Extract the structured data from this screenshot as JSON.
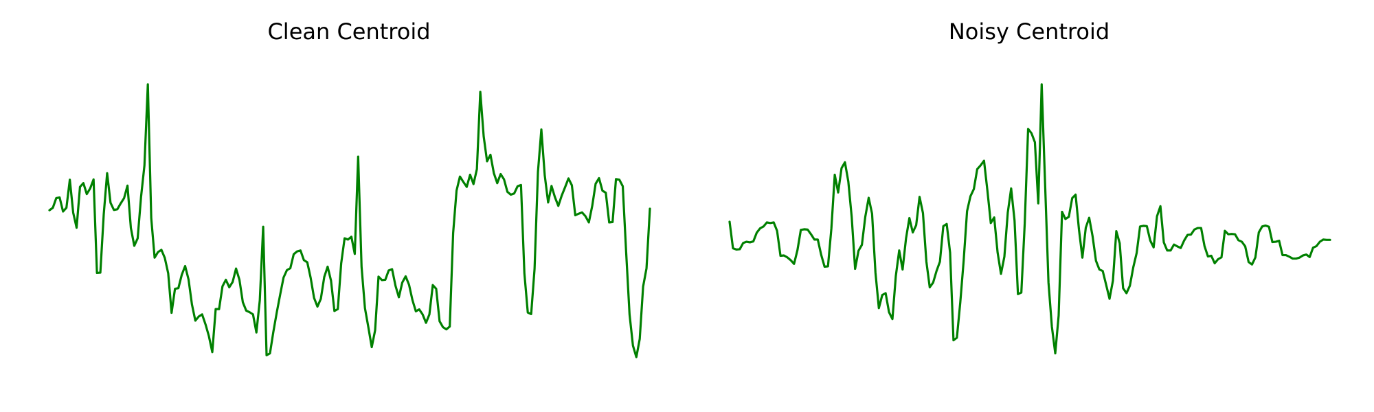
{
  "chart_data": [
    {
      "type": "line",
      "title": "Clean Centroid",
      "xlabel": "",
      "ylabel": "",
      "grid": false,
      "axes_visible": false,
      "color": "#008000",
      "ylim": [
        0,
        100
      ],
      "values": [
        53.7,
        54.5,
        57.6,
        57.8,
        53.3,
        54.5,
        63.5,
        52.9,
        48.1,
        61.2,
        62.4,
        58.9,
        60.7,
        63.6,
        33.6,
        33.7,
        52.4,
        65.6,
        56.1,
        53.8,
        54.0,
        55.9,
        57.6,
        61.6,
        48.0,
        42.3,
        44.7,
        58.0,
        68.1,
        94.1,
        51.2,
        38.5,
        40.3,
        41.0,
        38.4,
        33.5,
        20.8,
        28.5,
        28.7,
        33.0,
        35.8,
        31.5,
        23.5,
        18.3,
        19.6,
        20.3,
        17.1,
        13.3,
        8.2,
        22.0,
        22.0,
        29.3,
        31.4,
        29.0,
        30.7,
        35.0,
        31.4,
        24.2,
        21.5,
        21.0,
        20.3,
        14.5,
        24.8,
        48.4,
        7.2,
        7.8,
        14.7,
        20.9,
        26.6,
        32.1,
        34.5,
        35.1,
        39.6,
        40.5,
        40.8,
        37.7,
        37.0,
        32.0,
        25.6,
        22.8,
        25.3,
        32.3,
        35.6,
        31.1,
        21.4,
        22.0,
        36.7,
        44.7,
        44.3,
        45.2,
        39.7,
        70.9,
        35.6,
        22.3,
        16.2,
        9.8,
        15.2,
        32.4,
        31.3,
        31.4,
        34.4,
        34.8,
        29.5,
        25.8,
        30.5,
        32.5,
        29.8,
        24.9,
        21.3,
        21.9,
        20.3,
        17.6,
        20.3,
        29.7,
        28.5,
        18.1,
        16.2,
        15.5,
        16.4,
        46.4,
        60.0,
        64.5,
        62.8,
        61.2,
        65.1,
        62.1,
        66.9,
        91.7,
        77.4,
        69.4,
        71.5,
        65.6,
        62.4,
        65.3,
        63.6,
        59.6,
        58.7,
        59.1,
        61.4,
        61.8,
        33.5,
        20.9,
        20.4,
        34.9,
        66.0,
        79.6,
        64.9,
        56.2,
        61.5,
        57.9,
        55.1,
        58.4,
        61.1,
        63.9,
        61.7,
        52.1,
        52.6,
        53.0,
        51.8,
        49.8,
        55.1,
        62.2,
        64.0,
        60.0,
        59.3,
        49.8,
        49.9,
        63.7,
        63.5,
        61.4,
        40.2,
        20.3,
        10.3,
        6.6,
        12.4,
        29.2,
        35.1,
        54.2
      ]
    },
    {
      "type": "line",
      "title": "Noisy Centroid",
      "xlabel": "",
      "ylabel": "",
      "grid": false,
      "axes_visible": false,
      "color": "#008000",
      "ylim": [
        0,
        100
      ],
      "values": [
        50.0,
        41.5,
        41.1,
        41.2,
        43.2,
        43.6,
        43.4,
        43.7,
        46.5,
        47.9,
        48.5,
        49.8,
        49.6,
        49.8,
        47.1,
        39.1,
        39.2,
        38.6,
        37.7,
        36.5,
        40.9,
        47.4,
        47.6,
        47.5,
        46.0,
        44.3,
        44.3,
        39.4,
        35.6,
        35.7,
        47.8,
        65.1,
        59.4,
        67.2,
        69.1,
        62.9,
        51.5,
        34.9,
        40.7,
        42.6,
        51.6,
        57.7,
        52.6,
        33.7,
        22.3,
        26.5,
        27.1,
        21.0,
        18.8,
        32.6,
        40.8,
        34.7,
        44.6,
        51.2,
        46.6,
        48.9,
        58.0,
        52.8,
        37.3,
        29.0,
        30.5,
        34.2,
        37.2,
        48.6,
        49.3,
        40.1,
        12.0,
        12.8,
        24.1,
        37.5,
        53.4,
        58.2,
        60.5,
        66.9,
        68.1,
        69.6,
        60.0,
        49.6,
        51.4,
        40.2,
        33.3,
        38.8,
        52.9,
        60.7,
        50.4,
        26.8,
        27.3,
        49.4,
        79.8,
        78.4,
        75.5,
        55.9,
        94.1,
        62.3,
        30.6,
        16.4,
        7.8,
        19.9,
        53.2,
        50.9,
        51.6,
        57.6,
        58.7,
        47.4,
        38.5,
        48.1,
        51.3,
        45.4,
        37.5,
        34.7,
        34.2,
        29.8,
        25.3,
        31.1,
        47.0,
        43.1,
        28.7,
        27.1,
        29.5,
        35.4,
        40.0,
        48.5,
        48.7,
        48.6,
        44.0,
        41.8,
        51.8,
        55.0,
        43.4,
        40.8,
        40.8,
        42.7,
        42.1,
        41.6,
        44.0,
        45.8,
        45.9,
        47.5,
        48.0,
        48.0,
        42.2,
        38.9,
        39.1,
        36.7,
        38.0,
        38.6,
        47.1,
        46.0,
        46.1,
        46.0,
        44.1,
        43.6,
        42.1,
        37.1,
        36.3,
        38.6,
        46.6,
        48.5,
        48.8,
        48.4,
        43.5,
        43.6,
        43.9,
        39.3,
        39.3,
        38.8,
        38.2,
        38.2,
        38.5,
        39.2,
        39.5,
        38.7,
        41.7,
        42.2,
        43.6,
        44.3,
        44.2,
        44.2
      ]
    }
  ]
}
